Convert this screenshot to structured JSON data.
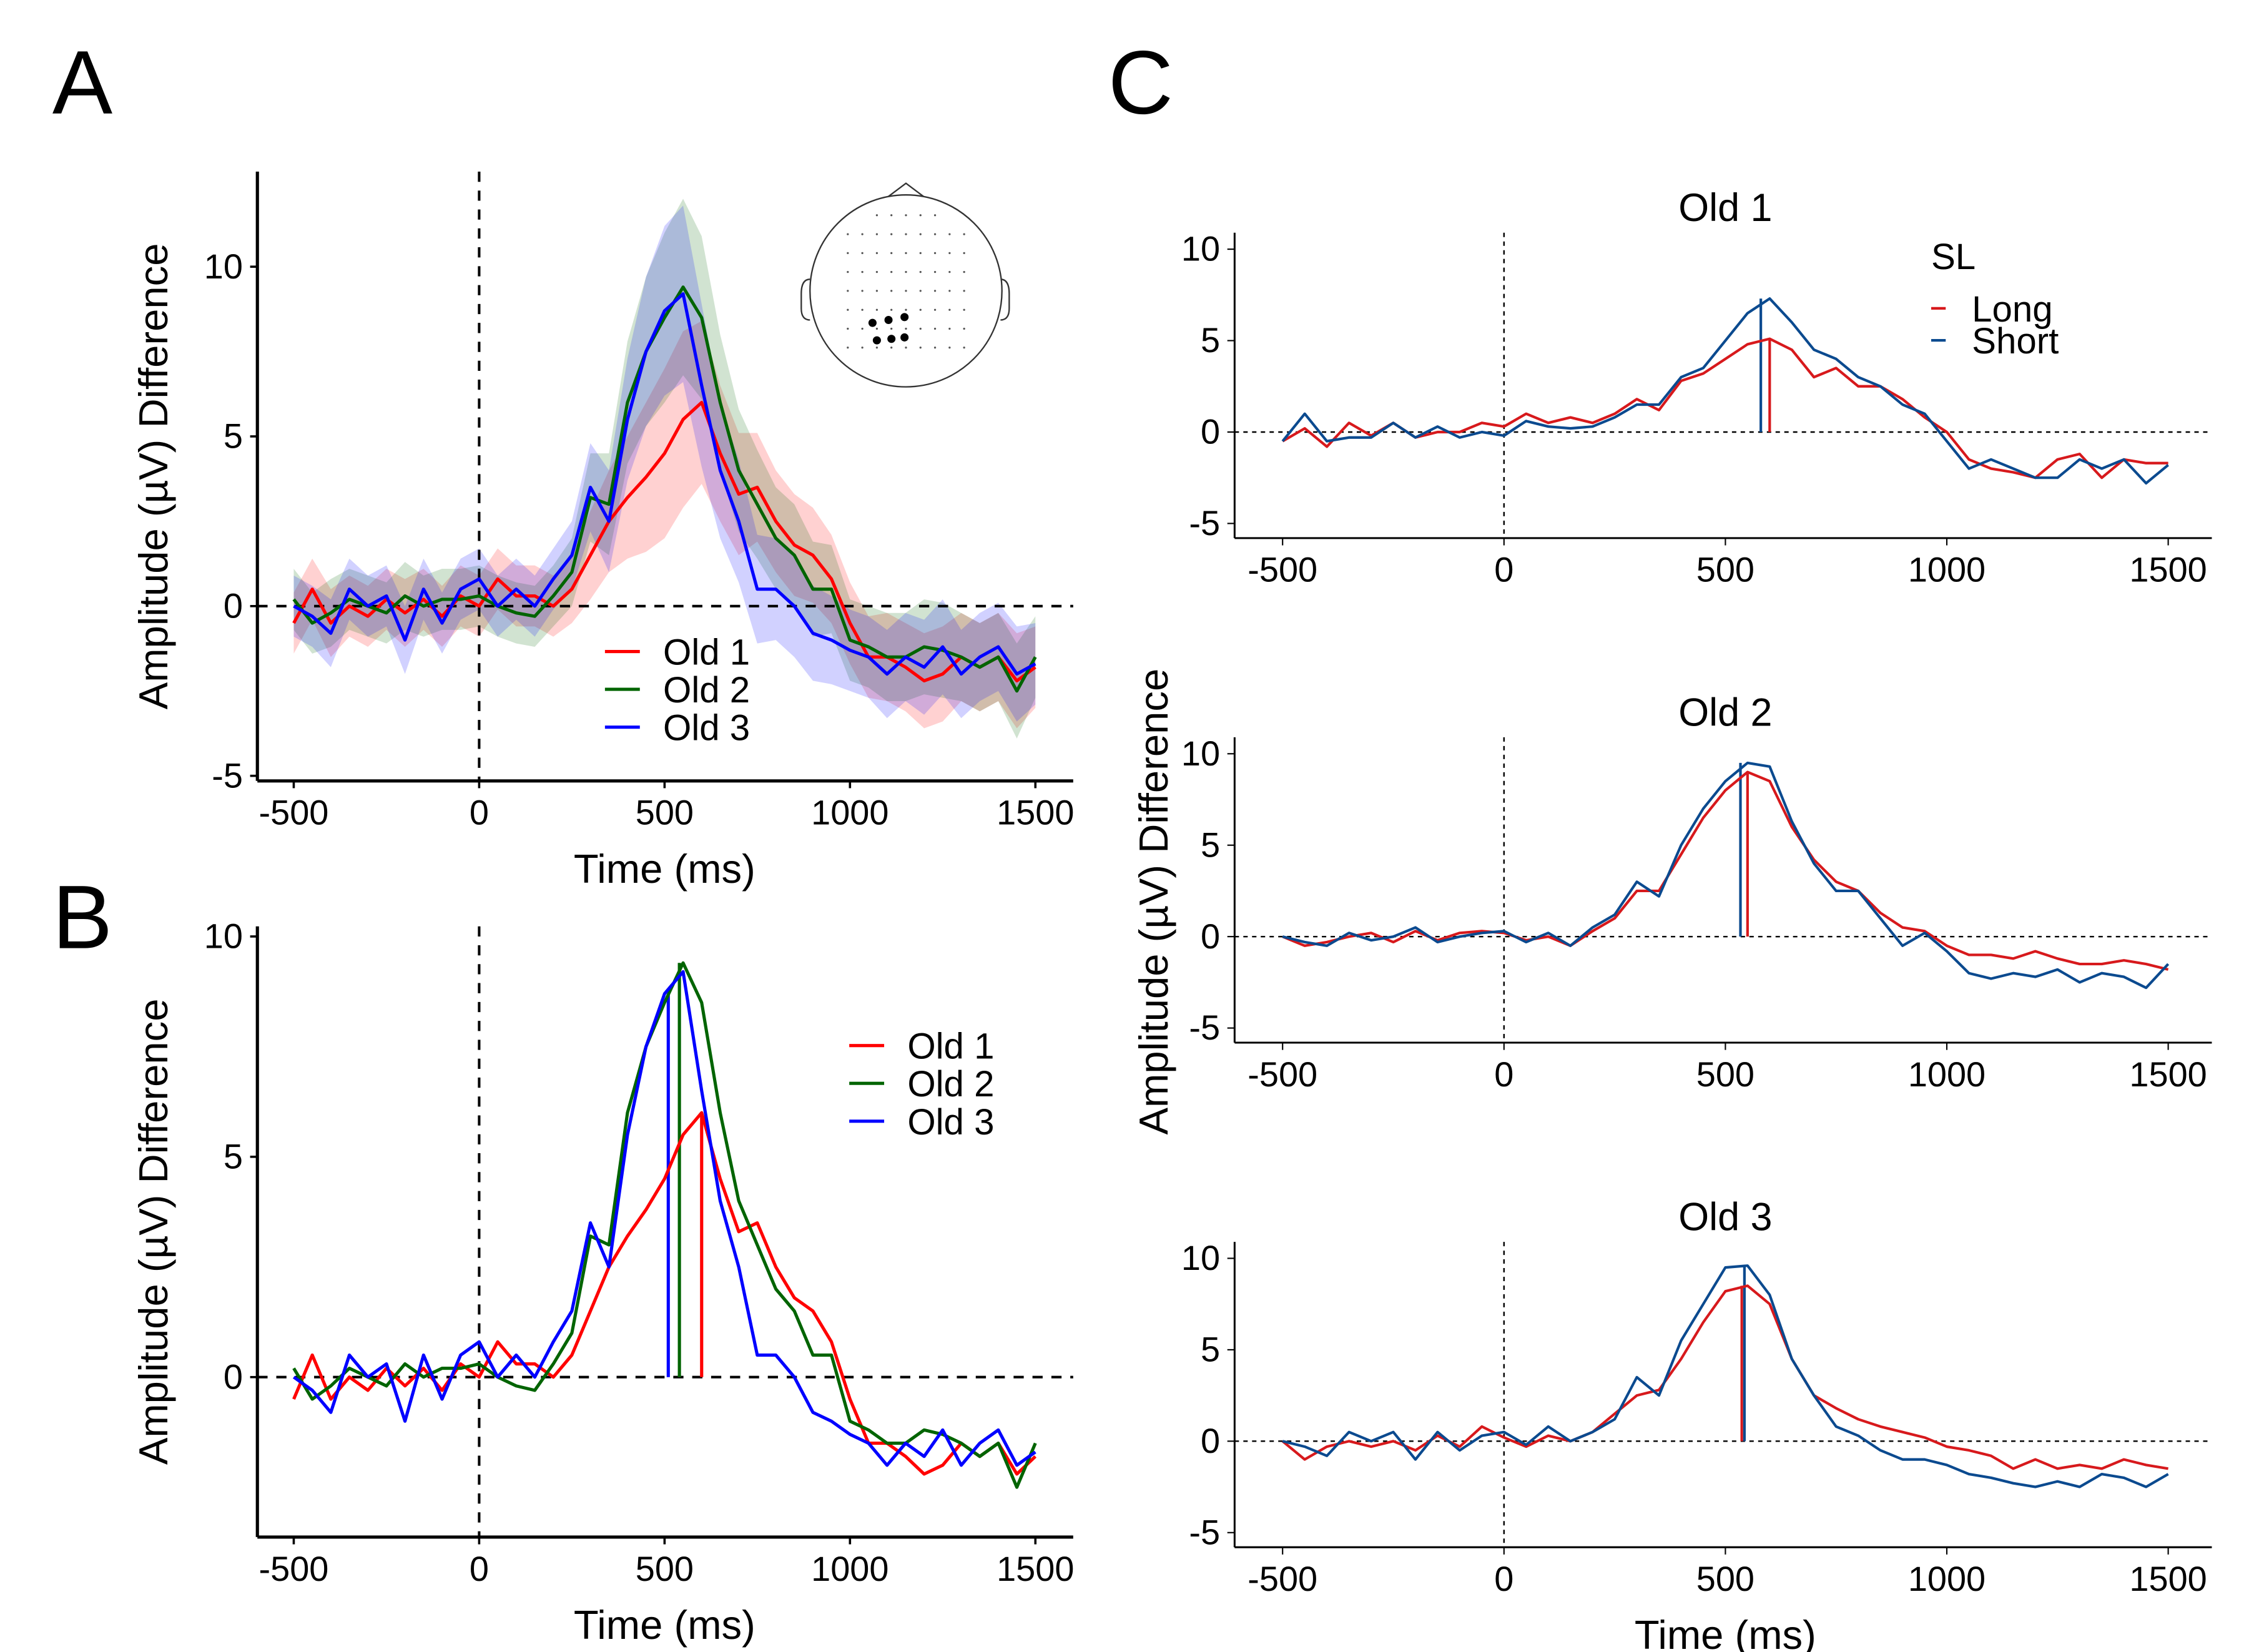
{
  "panel_letters": [
    "A",
    "B",
    "C"
  ],
  "colors": {
    "Old 1": "#ff0000",
    "Old 2": "#006400",
    "Old 3": "#0000ff",
    "Long": "#d7191c",
    "Short": "#0b4a8f"
  },
  "chart_data": [
    {
      "id": "A",
      "type": "line",
      "xlabel": "Time (ms)",
      "ylabel": "Amplitude (µV) Difference",
      "xlim": [
        -600,
        1600
      ],
      "ylim": [
        -5.15,
        12.8
      ],
      "xticks": [
        -500,
        0,
        500,
        1000,
        1500
      ],
      "yticks": [
        -5,
        0,
        5,
        10
      ],
      "grid": false,
      "legend": "bottom-center",
      "ribbons": true,
      "reference_lines": {
        "x": 0,
        "y": 0,
        "style": "dashed"
      },
      "inset": "scalp electrode map",
      "x": [
        -500,
        -450,
        -400,
        -350,
        -300,
        -250,
        -200,
        -150,
        -100,
        -50,
        0,
        50,
        100,
        150,
        200,
        250,
        300,
        350,
        400,
        450,
        500,
        550,
        600,
        650,
        700,
        750,
        800,
        850,
        900,
        950,
        1000,
        1050,
        1100,
        1150,
        1200,
        1250,
        1300,
        1350,
        1400,
        1450,
        1500
      ],
      "ci_halfwidth": [
        0.9,
        0.9,
        1,
        0.9,
        0.9,
        0.9,
        1,
        0.9,
        0.9,
        0.9,
        0.9,
        0.9,
        0.9,
        0.9,
        0.9,
        1,
        1.3,
        1.5,
        1.8,
        2.2,
        2.5,
        2.6,
        2.4,
        2,
        1.8,
        1.6,
        1.5,
        1.5,
        1.4,
        1.3,
        1.2,
        1.2,
        1.3,
        1.3,
        1.4,
        1.4,
        1.3,
        1.3,
        1.3,
        1.4,
        1.2
      ],
      "series": [
        {
          "name": "Old 1",
          "values": [
            -0.5,
            0.5,
            -0.5,
            0,
            -0.3,
            0.2,
            -0.2,
            0.2,
            -0.3,
            0.3,
            0,
            0.8,
            0.3,
            0.3,
            0,
            0.5,
            1.5,
            2.5,
            3.2,
            3.8,
            4.5,
            5.5,
            6.0,
            4.5,
            3.3,
            3.5,
            2.5,
            1.8,
            1.5,
            0.8,
            -0.5,
            -1.5,
            -1.5,
            -1.8,
            -2.2,
            -2,
            -1.5,
            -1.8,
            -1.5,
            -2.2,
            -1.8
          ]
        },
        {
          "name": "Old 2",
          "values": [
            0.2,
            -0.5,
            -0.2,
            0.2,
            0,
            -0.2,
            0.3,
            0,
            0.2,
            0.2,
            0.3,
            0,
            -0.2,
            -0.3,
            0.3,
            1,
            3.2,
            3,
            6,
            7.5,
            8.5,
            9.4,
            8.5,
            6,
            4,
            3,
            2,
            1.5,
            0.5,
            0.5,
            -1,
            -1.2,
            -1.5,
            -1.5,
            -1.2,
            -1.3,
            -1.5,
            -1.8,
            -1.5,
            -2.5,
            -1.5
          ]
        },
        {
          "name": "Old 3",
          "values": [
            0,
            -0.3,
            -0.8,
            0.5,
            0,
            0.3,
            -1,
            0.5,
            -0.5,
            0.5,
            0.8,
            0,
            0.5,
            0,
            0.8,
            1.5,
            3.5,
            2.5,
            5.5,
            7.5,
            8.7,
            9.2,
            6.5,
            4,
            2.5,
            0.5,
            0.5,
            0,
            -0.8,
            -1,
            -1.3,
            -1.5,
            -2,
            -1.5,
            -1.8,
            -1.2,
            -2,
            -1.5,
            -1.2,
            -2,
            -1.7
          ]
        }
      ]
    },
    {
      "id": "B",
      "type": "line",
      "xlabel": "Time (ms)",
      "ylabel": "Amplitude (µV) Difference",
      "xlim": [
        -600,
        1600
      ],
      "ylim": [
        -3.63,
        10.23
      ],
      "xticks": [
        -500,
        0,
        500,
        1000,
        1500
      ],
      "yticks": [
        0,
        5,
        10
      ],
      "grid": false,
      "legend": "top-right",
      "reference_lines": {
        "x": 0,
        "y": 0,
        "style": "dashed"
      },
      "peak_latency": {
        "Old 1": 600,
        "Old 2": 540,
        "Old 3": 510
      },
      "x": "same as A",
      "series": [
        {
          "name": "Old 1",
          "values": [
            -0.5,
            0.5,
            -0.5,
            0,
            -0.3,
            0.2,
            -0.2,
            0.2,
            -0.3,
            0.3,
            0,
            0.8,
            0.3,
            0.3,
            0,
            0.5,
            1.5,
            2.5,
            3.2,
            3.8,
            4.5,
            5.5,
            6.0,
            4.5,
            3.3,
            3.5,
            2.5,
            1.8,
            1.5,
            0.8,
            -0.5,
            -1.5,
            -1.5,
            -1.8,
            -2.2,
            -2,
            -1.5,
            -1.8,
            -1.5,
            -2.2,
            -1.8
          ]
        },
        {
          "name": "Old 2",
          "values": [
            0.2,
            -0.5,
            -0.2,
            0.2,
            0,
            -0.2,
            0.3,
            0,
            0.2,
            0.2,
            0.3,
            0,
            -0.2,
            -0.3,
            0.3,
            1,
            3.2,
            3,
            6,
            7.5,
            8.5,
            9.4,
            8.5,
            6,
            4,
            3,
            2,
            1.5,
            0.5,
            0.5,
            -1,
            -1.2,
            -1.5,
            -1.5,
            -1.2,
            -1.3,
            -1.5,
            -1.8,
            -1.5,
            -2.5,
            -1.5
          ]
        },
        {
          "name": "Old 3",
          "values": [
            0,
            -0.3,
            -0.8,
            0.5,
            0,
            0.3,
            -1,
            0.5,
            -0.5,
            0.5,
            0.8,
            0,
            0.5,
            0,
            0.8,
            1.5,
            3.5,
            2.5,
            5.5,
            7.5,
            8.7,
            9.2,
            6.5,
            4,
            2.5,
            0.5,
            0.5,
            0,
            -0.8,
            -1,
            -1.3,
            -1.5,
            -2,
            -1.5,
            -1.8,
            -1.2,
            -2,
            -1.5,
            -1.2,
            -2,
            -1.7
          ]
        }
      ]
    },
    {
      "id": "C1",
      "type": "line",
      "title": "Old 1",
      "xlim": [
        -600,
        1600
      ],
      "ylim": [
        -5.8,
        10.9
      ],
      "xticks": [
        -500,
        0,
        500,
        1000,
        1500
      ],
      "yticks": [
        -5,
        0,
        5,
        10
      ],
      "grid": false,
      "legend": "top-right",
      "legend_title": "SL",
      "reference_lines": {
        "x": 0,
        "y": 0,
        "style": "dotted"
      },
      "peak_latency": {
        "Long": 600,
        "Short": 580
      },
      "series": [
        {
          "name": "Long",
          "values": [
            -0.5,
            0.2,
            -0.8,
            0.5,
            -0.2,
            0.5,
            -0.3,
            0,
            0,
            0.5,
            0.3,
            1,
            0.5,
            0.8,
            0.5,
            1,
            1.8,
            1.2,
            2.8,
            3.2,
            4,
            4.8,
            5.1,
            4.5,
            3,
            3.5,
            2.5,
            2.5,
            1.8,
            0.8,
            0,
            -1.5,
            -2,
            -2.2,
            -2.5,
            -1.5,
            -1.2,
            -2.5,
            -1.5,
            -1.7,
            -1.7
          ]
        },
        {
          "name": "Short",
          "values": [
            -0.5,
            1,
            -0.5,
            -0.3,
            -0.3,
            0.5,
            -0.3,
            0.3,
            -0.3,
            0,
            -0.2,
            0.6,
            0.3,
            0.2,
            0.3,
            0.8,
            1.5,
            1.5,
            3,
            3.5,
            5,
            6.5,
            7.3,
            6,
            4.5,
            4,
            3,
            2.5,
            1.5,
            1,
            -0.5,
            -2,
            -1.5,
            -2,
            -2.5,
            -2.5,
            -1.5,
            -2,
            -1.5,
            -2.8,
            -1.8
          ]
        }
      ]
    },
    {
      "id": "C2",
      "type": "line",
      "title": "Old 2",
      "ylabel": "Amplitude (µV) Difference",
      "xlim": [
        -600,
        1600
      ],
      "ylim": [
        -5.8,
        10.9
      ],
      "xticks": [
        -500,
        0,
        500,
        1000,
        1500
      ],
      "yticks": [
        -5,
        0,
        5,
        10
      ],
      "grid": false,
      "reference_lines": {
        "x": 0,
        "y": 0,
        "style": "dotted"
      },
      "peak_latency": {
        "Long": 550,
        "Short": 534
      },
      "series": [
        {
          "name": "Long",
          "values": [
            0,
            -0.5,
            -0.3,
            0,
            0.2,
            -0.3,
            0.3,
            -0.2,
            0.2,
            0.3,
            0.2,
            -0.2,
            0,
            -0.5,
            0.3,
            1,
            2.5,
            2.5,
            4.5,
            6.5,
            8,
            9,
            8.5,
            6,
            4.2,
            3,
            2.5,
            1.3,
            0.5,
            0.3,
            -0.5,
            -1,
            -1,
            -1.2,
            -0.8,
            -1.2,
            -1.5,
            -1.5,
            -1.3,
            -1.5,
            -1.8
          ]
        },
        {
          "name": "Short",
          "values": [
            0,
            -0.3,
            -0.5,
            0.2,
            -0.2,
            0,
            0.5,
            -0.3,
            0,
            0.2,
            0.3,
            -0.3,
            0.2,
            -0.5,
            0.5,
            1.2,
            3,
            2.2,
            5,
            7,
            8.5,
            9.5,
            9.3,
            6.3,
            4,
            2.5,
            2.5,
            1,
            -0.5,
            0.2,
            -0.8,
            -2,
            -2.3,
            -2,
            -2.2,
            -1.8,
            -2.5,
            -2,
            -2.2,
            -2.8,
            -1.5
          ]
        }
      ]
    },
    {
      "id": "C3",
      "type": "line",
      "title": "Old 3",
      "xlabel": "Time (ms)",
      "xlim": [
        -600,
        1600
      ],
      "ylim": [
        -5.8,
        10.9
      ],
      "xticks": [
        -500,
        0,
        500,
        1000,
        1500
      ],
      "yticks": [
        -5,
        0,
        5,
        10
      ],
      "grid": false,
      "reference_lines": {
        "x": 0,
        "y": 0,
        "style": "dotted"
      },
      "peak_latency": {
        "Long": 537,
        "Short": 543
      },
      "series": [
        {
          "name": "Long",
          "values": [
            0,
            -1,
            -0.3,
            0,
            -0.3,
            0,
            -0.5,
            0.3,
            -0.3,
            0.8,
            0.2,
            -0.3,
            0.3,
            0,
            0.5,
            1.5,
            2.5,
            2.8,
            4.5,
            6.5,
            8.2,
            8.5,
            7.5,
            4.5,
            2.5,
            1.8,
            1.2,
            0.8,
            0.5,
            0.2,
            -0.3,
            -0.5,
            -0.8,
            -1.5,
            -1,
            -1.5,
            -1.3,
            -1.5,
            -1,
            -1.3,
            -1.5
          ]
        },
        {
          "name": "Short",
          "values": [
            0,
            -0.3,
            -0.8,
            0.5,
            0,
            0.5,
            -1,
            0.5,
            -0.5,
            0.3,
            0.5,
            -0.2,
            0.8,
            0,
            0.5,
            1.2,
            3.5,
            2.5,
            5.5,
            7.5,
            9.5,
            9.6,
            8,
            4.5,
            2.5,
            0.8,
            0.3,
            -0.5,
            -1,
            -1,
            -1.3,
            -1.8,
            -2,
            -2.3,
            -2.5,
            -2.2,
            -2.5,
            -1.8,
            -2,
            -2.5,
            -1.8
          ]
        }
      ]
    }
  ]
}
